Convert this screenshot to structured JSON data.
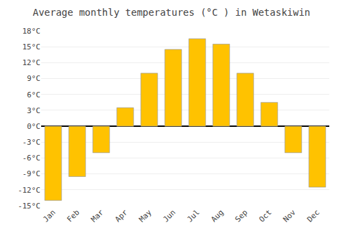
{
  "chart_data": {
    "type": "bar",
    "title": "Average monthly temperatures (°C ) in Wetaskiwin",
    "categories": [
      "Jan",
      "Feb",
      "Mar",
      "Apr",
      "May",
      "Jun",
      "Jul",
      "Aug",
      "Sep",
      "Oct",
      "Nov",
      "Dec"
    ],
    "values": [
      -14,
      -9.5,
      -5,
      3.5,
      10,
      14.5,
      16.5,
      15.5,
      10,
      4.5,
      -5,
      -11.5
    ],
    "color": "#FFC200",
    "ylim": [
      -15,
      18
    ],
    "yticks": [
      {
        "value": -15,
        "label": "-15°C"
      },
      {
        "value": -12,
        "label": "-12°C"
      },
      {
        "value": -9,
        "label": "-9°C"
      },
      {
        "value": -6,
        "label": "-6°C"
      },
      {
        "value": -3,
        "label": "-3°C"
      },
      {
        "value": 0,
        "label": "0°C"
      },
      {
        "value": 3,
        "label": "3°C"
      },
      {
        "value": 6,
        "label": "6°C"
      },
      {
        "value": 9,
        "label": "9°C"
      },
      {
        "value": 12,
        "label": "12°C"
      },
      {
        "value": 15,
        "label": "15°C"
      },
      {
        "value": 18,
        "label": "18°C"
      }
    ],
    "grid": true
  }
}
